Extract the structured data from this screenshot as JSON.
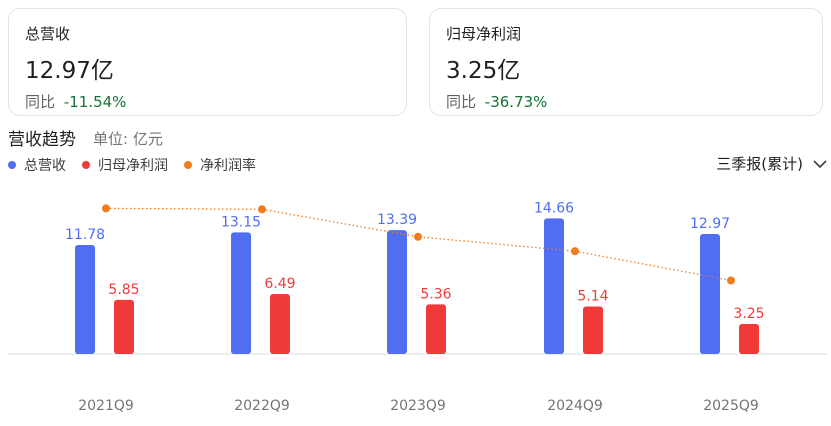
{
  "cards": [
    {
      "label": "总营收",
      "value": "12.97亿",
      "yoy_label": "同比",
      "yoy_value": "-11.54%"
    },
    {
      "label": "归母净利润",
      "value": "3.25亿",
      "yoy_label": "同比",
      "yoy_value": "-36.73%"
    }
  ],
  "section": {
    "title": "营收趋势",
    "unit": "单位: 亿元"
  },
  "period_selector": {
    "label": "三季报(累计)",
    "icon": "chevron-down-icon"
  },
  "colors": {
    "revenue": "#4f6ef2",
    "profit": "#f03a3a",
    "margin": "#f07c1e",
    "positive_yoy": "#137333"
  },
  "chart_data": {
    "type": "bar",
    "categories": [
      "2021Q9",
      "2022Q9",
      "2023Q9",
      "2024Q9",
      "2025Q9"
    ],
    "series": [
      {
        "name": "总营收",
        "type": "bar",
        "values": [
          11.78,
          13.15,
          13.39,
          14.66,
          12.97
        ],
        "data_labels": [
          "11.78",
          "13.15",
          "13.39",
          "14.66",
          "12.97"
        ]
      },
      {
        "name": "归母净利润",
        "type": "bar",
        "values": [
          5.85,
          6.49,
          5.36,
          5.14,
          3.25
        ],
        "data_labels": [
          "5.85",
          "6.49",
          "5.36",
          "5.14",
          "3.25"
        ]
      },
      {
        "name": "净利润率",
        "type": "line",
        "style": "dotted",
        "unit": "%",
        "values": [
          49.7,
          49.4,
          40.0,
          35.1,
          25.1
        ]
      }
    ],
    "ylim": [
      0,
      16
    ],
    "margin_ylim": [
      0,
      60
    ],
    "legend_position": "top-left",
    "grid": false
  }
}
